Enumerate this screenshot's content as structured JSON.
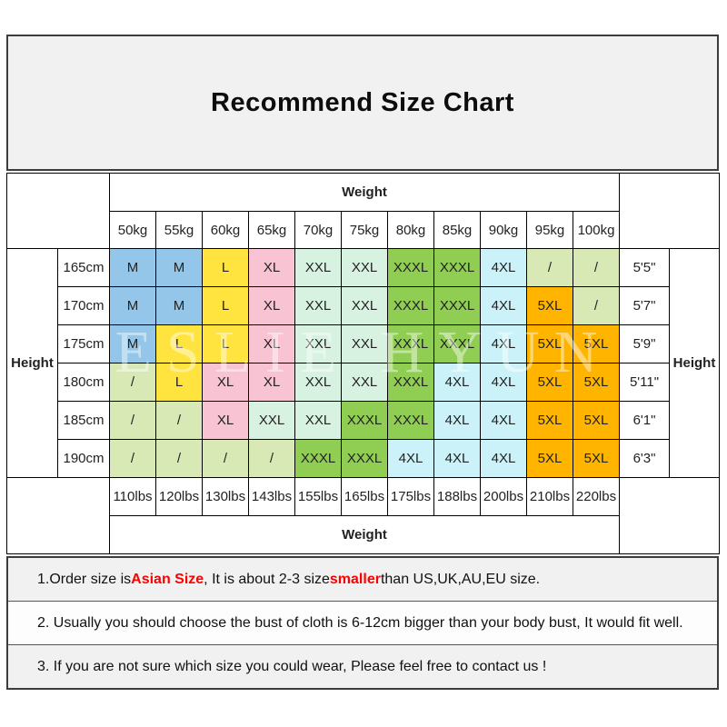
{
  "title": "Recommend Size Chart",
  "watermark": "ESLIE HYUN",
  "table": {
    "weight_label": "Weight",
    "height_label": "Height",
    "kg_headers": [
      "50kg",
      "55kg",
      "60kg",
      "65kg",
      "70kg",
      "75kg",
      "80kg",
      "85kg",
      "90kg",
      "95kg",
      "100kg"
    ],
    "lbs_headers": [
      "110lbs",
      "120lbs",
      "130lbs",
      "143lbs",
      "155lbs",
      "165lbs",
      "175lbs",
      "188lbs",
      "200lbs",
      "210lbs",
      "220lbs"
    ],
    "rows": [
      {
        "cm": "165cm",
        "ft": "5'5\"",
        "sizes": [
          "M",
          "M",
          "L",
          "XL",
          "XXL",
          "XXL",
          "XXXL",
          "XXXL",
          "4XL",
          "/",
          "/"
        ]
      },
      {
        "cm": "170cm",
        "ft": "5'7\"",
        "sizes": [
          "M",
          "M",
          "L",
          "XL",
          "XXL",
          "XXL",
          "XXXL",
          "XXXL",
          "4XL",
          "5XL",
          "/"
        ]
      },
      {
        "cm": "175cm",
        "ft": "5'9\"",
        "sizes": [
          "M",
          "L",
          "L",
          "XL",
          "XXL",
          "XXL",
          "XXXL",
          "XXXL",
          "4XL",
          "5XL",
          "5XL"
        ]
      },
      {
        "cm": "180cm",
        "ft": "5'11\"",
        "sizes": [
          "/",
          "L",
          "XL",
          "XL",
          "XXL",
          "XXL",
          "XXXL",
          "4XL",
          "4XL",
          "5XL",
          "5XL"
        ]
      },
      {
        "cm": "185cm",
        "ft": "6'1\"",
        "sizes": [
          "/",
          "/",
          "XL",
          "XXL",
          "XXL",
          "XXXL",
          "XXXL",
          "4XL",
          "4XL",
          "5XL",
          "5XL"
        ]
      },
      {
        "cm": "190cm",
        "ft": "6'3\"",
        "sizes": [
          "/",
          "/",
          "/",
          "/",
          "XXXL",
          "XXXL",
          "4XL",
          "4XL",
          "4XL",
          "5XL",
          "5XL"
        ]
      }
    ],
    "size_colors": {
      "M": "#93C6E8",
      "L": "#FFE440",
      "XL": "#F8C3D2",
      "XXL": "#D8F2E1",
      "XXXL": "#90CE53",
      "4XL": "#CBF2F8",
      "5XL": "#FFB400",
      "/": "#D9E9B6"
    }
  },
  "notes": [
    {
      "segments": [
        {
          "text": "1.Order size is ",
          "red": false
        },
        {
          "text": "Asian Size",
          "red": true
        },
        {
          "text": ", It is about 2-3 size ",
          "red": false
        },
        {
          "text": "smaller",
          "red": true
        },
        {
          "text": " than US,UK,AU,EU size.",
          "red": false
        }
      ]
    },
    {
      "segments": [
        {
          "text": "2. Usually you should choose the bust of cloth is 6-12cm bigger than your body bust, It would fit well.",
          "red": false
        }
      ]
    },
    {
      "segments": [
        {
          "text": "3. If you are not sure which size you could wear, Please feel free to contact us !",
          "red": false
        }
      ]
    }
  ],
  "colors": {
    "note_red": "#FF0000",
    "panel_bg": "#F1F1F1",
    "border": "#000000"
  }
}
